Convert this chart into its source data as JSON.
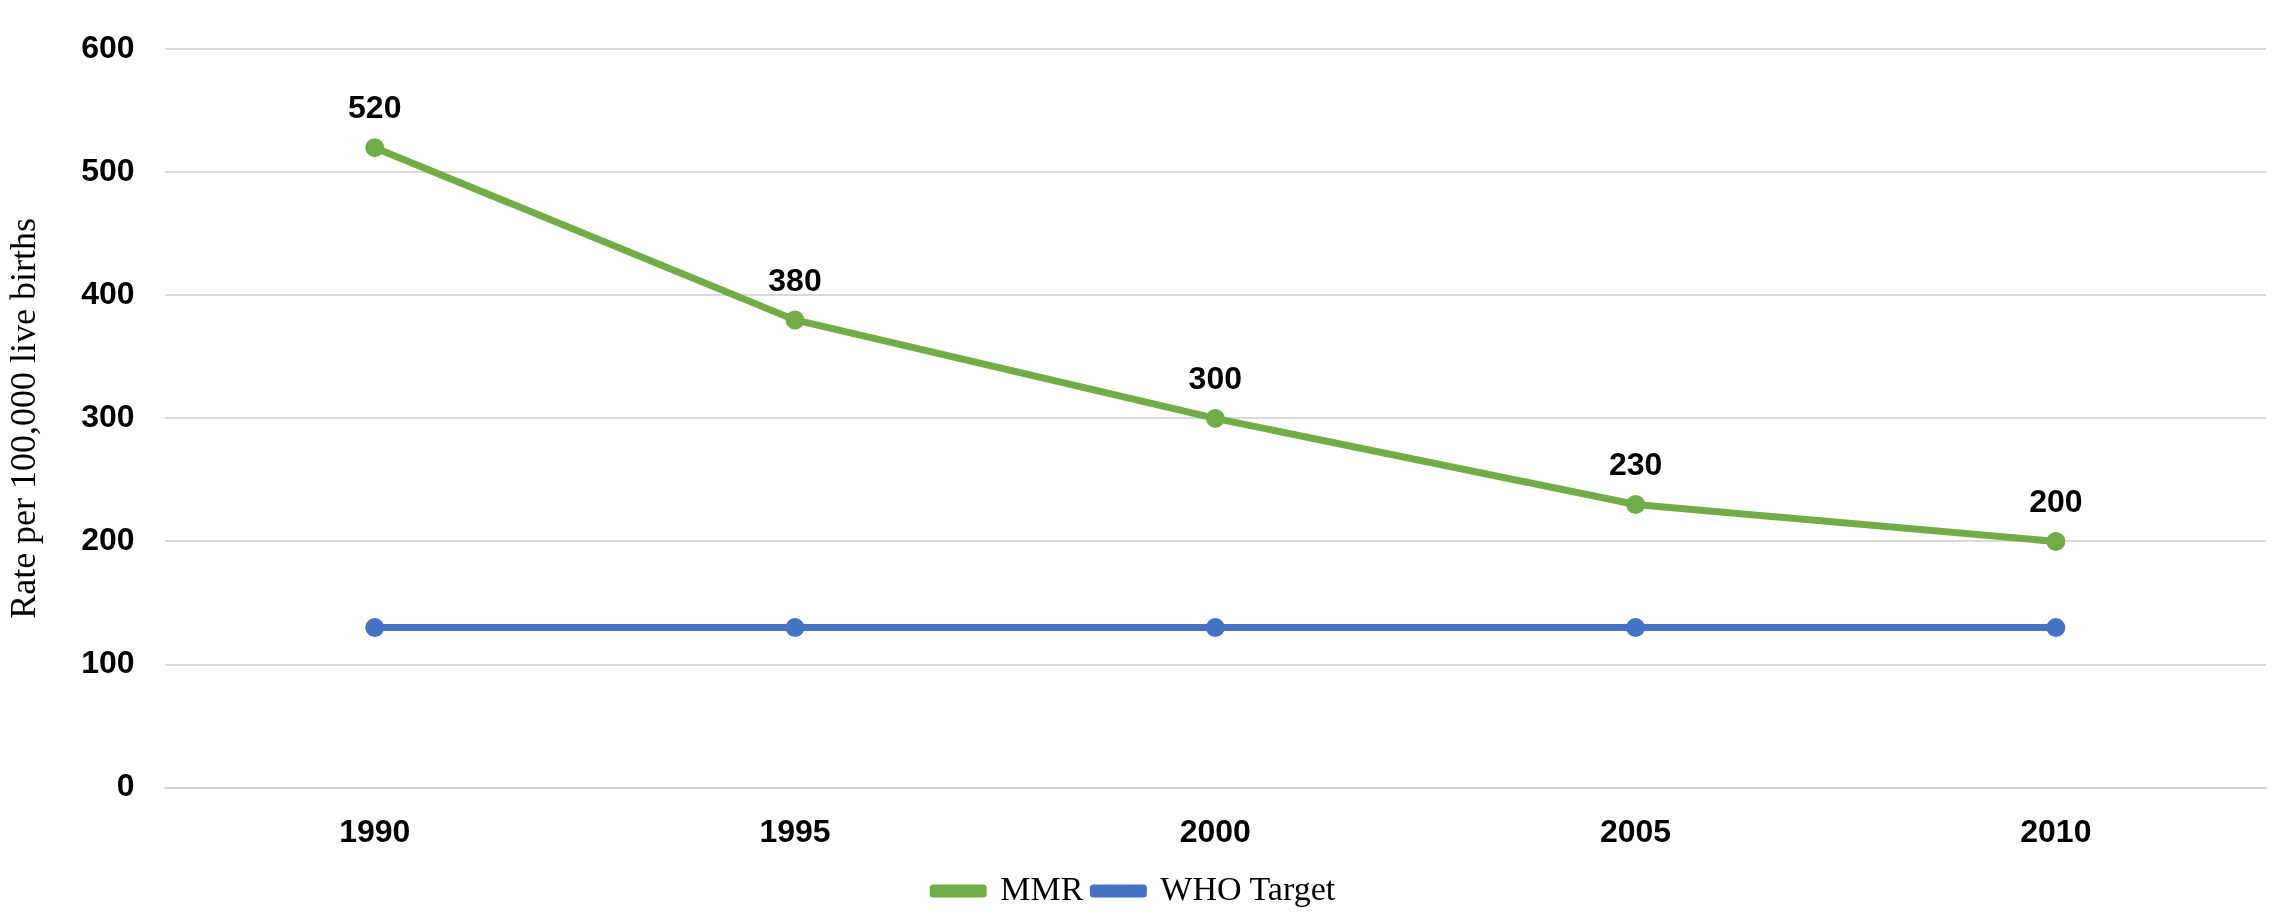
{
  "chart_data": {
    "type": "line",
    "ylabel": "Rate per 100,000 live births",
    "categories": [
      "1990",
      "1995",
      "2000",
      "2005",
      "2010"
    ],
    "series": [
      {
        "name": "MMR",
        "color": "#70ad47",
        "values": [
          520,
          380,
          300,
          230,
          200
        ],
        "value_labels": [
          "520",
          "380",
          "300",
          "230",
          "200"
        ]
      },
      {
        "name": "WHO Target",
        "color": "#4472c4",
        "values": [
          130,
          130,
          130,
          130,
          130
        ]
      }
    ],
    "ylim": [
      0,
      600
    ],
    "yticks": [
      0,
      100,
      200,
      300,
      400,
      500,
      600
    ],
    "grid": "y",
    "legend": "bottom",
    "marker": "circle",
    "line_style": "solid"
  }
}
